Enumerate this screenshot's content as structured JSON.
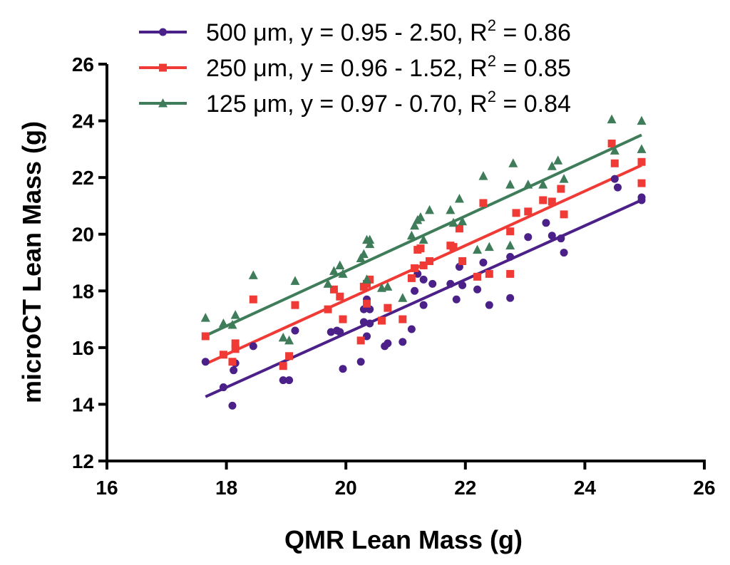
{
  "chart_data": {
    "type": "scatter",
    "xlabel": "QMR Lean Mass (g)",
    "ylabel": "microCT Lean Mass (g)",
    "xlim": [
      16,
      26
    ],
    "ylim": [
      12,
      26
    ],
    "xticks": [
      "16",
      "18",
      "20",
      "22",
      "24",
      "26"
    ],
    "yticks": [
      "12",
      "14",
      "16",
      "18",
      "20",
      "22",
      "24",
      "26"
    ],
    "grid": false,
    "legend_position": "top",
    "series": [
      {
        "name": "500 μm",
        "legend_prefix": "500 μm, y = 0.95 - 2.50, R",
        "legend_sup": "2",
        "legend_suffix": " = 0.86",
        "color": "#4b2088",
        "marker": "circle",
        "fit": {
          "slope": 0.95,
          "intercept": -2.5,
          "x_range": [
            17.65,
            24.95
          ]
        },
        "points": [
          [
            17.65,
            15.5
          ],
          [
            17.95,
            14.6
          ],
          [
            18.1,
            13.95
          ],
          [
            18.12,
            15.2
          ],
          [
            18.15,
            15.45
          ],
          [
            18.45,
            16.05
          ],
          [
            18.95,
            14.85
          ],
          [
            19.05,
            14.85
          ],
          [
            19.15,
            16.6
          ],
          [
            19.75,
            16.55
          ],
          [
            19.85,
            16.6
          ],
          [
            19.9,
            16.55
          ],
          [
            19.95,
            15.25
          ],
          [
            20.25,
            15.5
          ],
          [
            20.3,
            16.9
          ],
          [
            20.35,
            16.4
          ],
          [
            20.3,
            17.35
          ],
          [
            20.35,
            17.7
          ],
          [
            20.4,
            17.35
          ],
          [
            20.4,
            16.85
          ],
          [
            20.65,
            16.05
          ],
          [
            20.7,
            16.15
          ],
          [
            20.95,
            16.2
          ],
          [
            21.1,
            16.65
          ],
          [
            21.15,
            18.0
          ],
          [
            21.2,
            18.6
          ],
          [
            21.3,
            18.4
          ],
          [
            21.3,
            17.5
          ],
          [
            21.45,
            18.25
          ],
          [
            21.75,
            18.25
          ],
          [
            21.85,
            17.7
          ],
          [
            21.9,
            18.85
          ],
          [
            21.95,
            18.2
          ],
          [
            22.2,
            18.05
          ],
          [
            22.3,
            19.0
          ],
          [
            22.4,
            17.5
          ],
          [
            22.75,
            17.75
          ],
          [
            22.75,
            19.2
          ],
          [
            23.05,
            19.9
          ],
          [
            23.35,
            20.4
          ],
          [
            23.45,
            19.95
          ],
          [
            23.6,
            19.85
          ],
          [
            23.65,
            19.35
          ],
          [
            24.5,
            21.95
          ],
          [
            24.55,
            21.65
          ],
          [
            24.95,
            21.3
          ],
          [
            24.95,
            21.2
          ]
        ]
      },
      {
        "name": "250 μm",
        "legend_prefix": "250 μm, y = 0.96 - 1.52, R",
        "legend_sup": "2",
        "legend_suffix": " = 0.85",
        "color": "#f03a35",
        "marker": "square",
        "fit": {
          "slope": 0.96,
          "intercept": -1.52,
          "x_range": [
            17.65,
            24.95
          ]
        },
        "points": [
          [
            17.65,
            16.4
          ],
          [
            17.95,
            15.75
          ],
          [
            18.1,
            15.5
          ],
          [
            18.15,
            15.95
          ],
          [
            18.15,
            16.15
          ],
          [
            18.45,
            17.7
          ],
          [
            18.95,
            15.35
          ],
          [
            19.05,
            15.7
          ],
          [
            19.15,
            17.5
          ],
          [
            19.7,
            17.35
          ],
          [
            19.8,
            18.05
          ],
          [
            19.9,
            17.8
          ],
          [
            19.95,
            17.0
          ],
          [
            20.25,
            16.25
          ],
          [
            20.3,
            18.15
          ],
          [
            20.35,
            18.25
          ],
          [
            20.35,
            17.55
          ],
          [
            20.4,
            18.4
          ],
          [
            20.6,
            16.95
          ],
          [
            20.7,
            17.4
          ],
          [
            20.95,
            17.0
          ],
          [
            21.1,
            18.45
          ],
          [
            21.15,
            18.8
          ],
          [
            21.2,
            19.45
          ],
          [
            21.25,
            19.5
          ],
          [
            21.3,
            18.9
          ],
          [
            21.4,
            19.05
          ],
          [
            21.75,
            19.6
          ],
          [
            21.8,
            19.55
          ],
          [
            21.9,
            20.2
          ],
          [
            21.95,
            19.05
          ],
          [
            22.2,
            18.5
          ],
          [
            22.3,
            21.1
          ],
          [
            22.4,
            18.6
          ],
          [
            22.75,
            18.6
          ],
          [
            22.75,
            20.1
          ],
          [
            22.85,
            20.75
          ],
          [
            23.05,
            20.8
          ],
          [
            23.3,
            21.2
          ],
          [
            23.45,
            21.15
          ],
          [
            23.6,
            21.6
          ],
          [
            23.65,
            20.7
          ],
          [
            24.45,
            23.2
          ],
          [
            24.5,
            22.5
          ],
          [
            24.95,
            22.55
          ],
          [
            24.95,
            21.8
          ]
        ]
      },
      {
        "name": "125 μm",
        "legend_prefix": "125 μm, y = 0.97 - 0.70, R",
        "legend_sup": "2",
        "legend_suffix": " = 0.84",
        "color": "#3f7d5a",
        "marker": "triangle",
        "fit": {
          "slope": 0.97,
          "intercept": -0.7,
          "x_range": [
            17.65,
            24.95
          ]
        },
        "points": [
          [
            17.65,
            17.05
          ],
          [
            17.95,
            16.85
          ],
          [
            18.1,
            16.8
          ],
          [
            18.15,
            17.15
          ],
          [
            18.45,
            18.55
          ],
          [
            18.95,
            16.35
          ],
          [
            19.05,
            16.25
          ],
          [
            19.15,
            18.35
          ],
          [
            19.7,
            18.25
          ],
          [
            19.8,
            18.7
          ],
          [
            19.9,
            18.9
          ],
          [
            19.95,
            18.6
          ],
          [
            20.25,
            19.15
          ],
          [
            20.3,
            19.3
          ],
          [
            20.35,
            19.8
          ],
          [
            20.4,
            19.65
          ],
          [
            20.35,
            18.4
          ],
          [
            20.4,
            19.8
          ],
          [
            20.6,
            18.1
          ],
          [
            20.7,
            18.15
          ],
          [
            20.95,
            17.75
          ],
          [
            21.1,
            19.95
          ],
          [
            21.15,
            20.3
          ],
          [
            21.2,
            20.5
          ],
          [
            21.25,
            20.6
          ],
          [
            21.3,
            19.8
          ],
          [
            21.4,
            20.85
          ],
          [
            21.75,
            20.85
          ],
          [
            21.8,
            20.4
          ],
          [
            21.9,
            21.25
          ],
          [
            21.95,
            20.45
          ],
          [
            22.2,
            19.45
          ],
          [
            22.3,
            22.05
          ],
          [
            22.4,
            19.55
          ],
          [
            22.75,
            19.6
          ],
          [
            22.75,
            21.75
          ],
          [
            22.8,
            22.5
          ],
          [
            23.05,
            21.75
          ],
          [
            23.3,
            21.75
          ],
          [
            23.45,
            22.4
          ],
          [
            23.55,
            22.6
          ],
          [
            23.65,
            21.95
          ],
          [
            24.45,
            24.05
          ],
          [
            24.5,
            22.95
          ],
          [
            24.95,
            24.0
          ],
          [
            24.95,
            23.0
          ]
        ]
      }
    ]
  }
}
